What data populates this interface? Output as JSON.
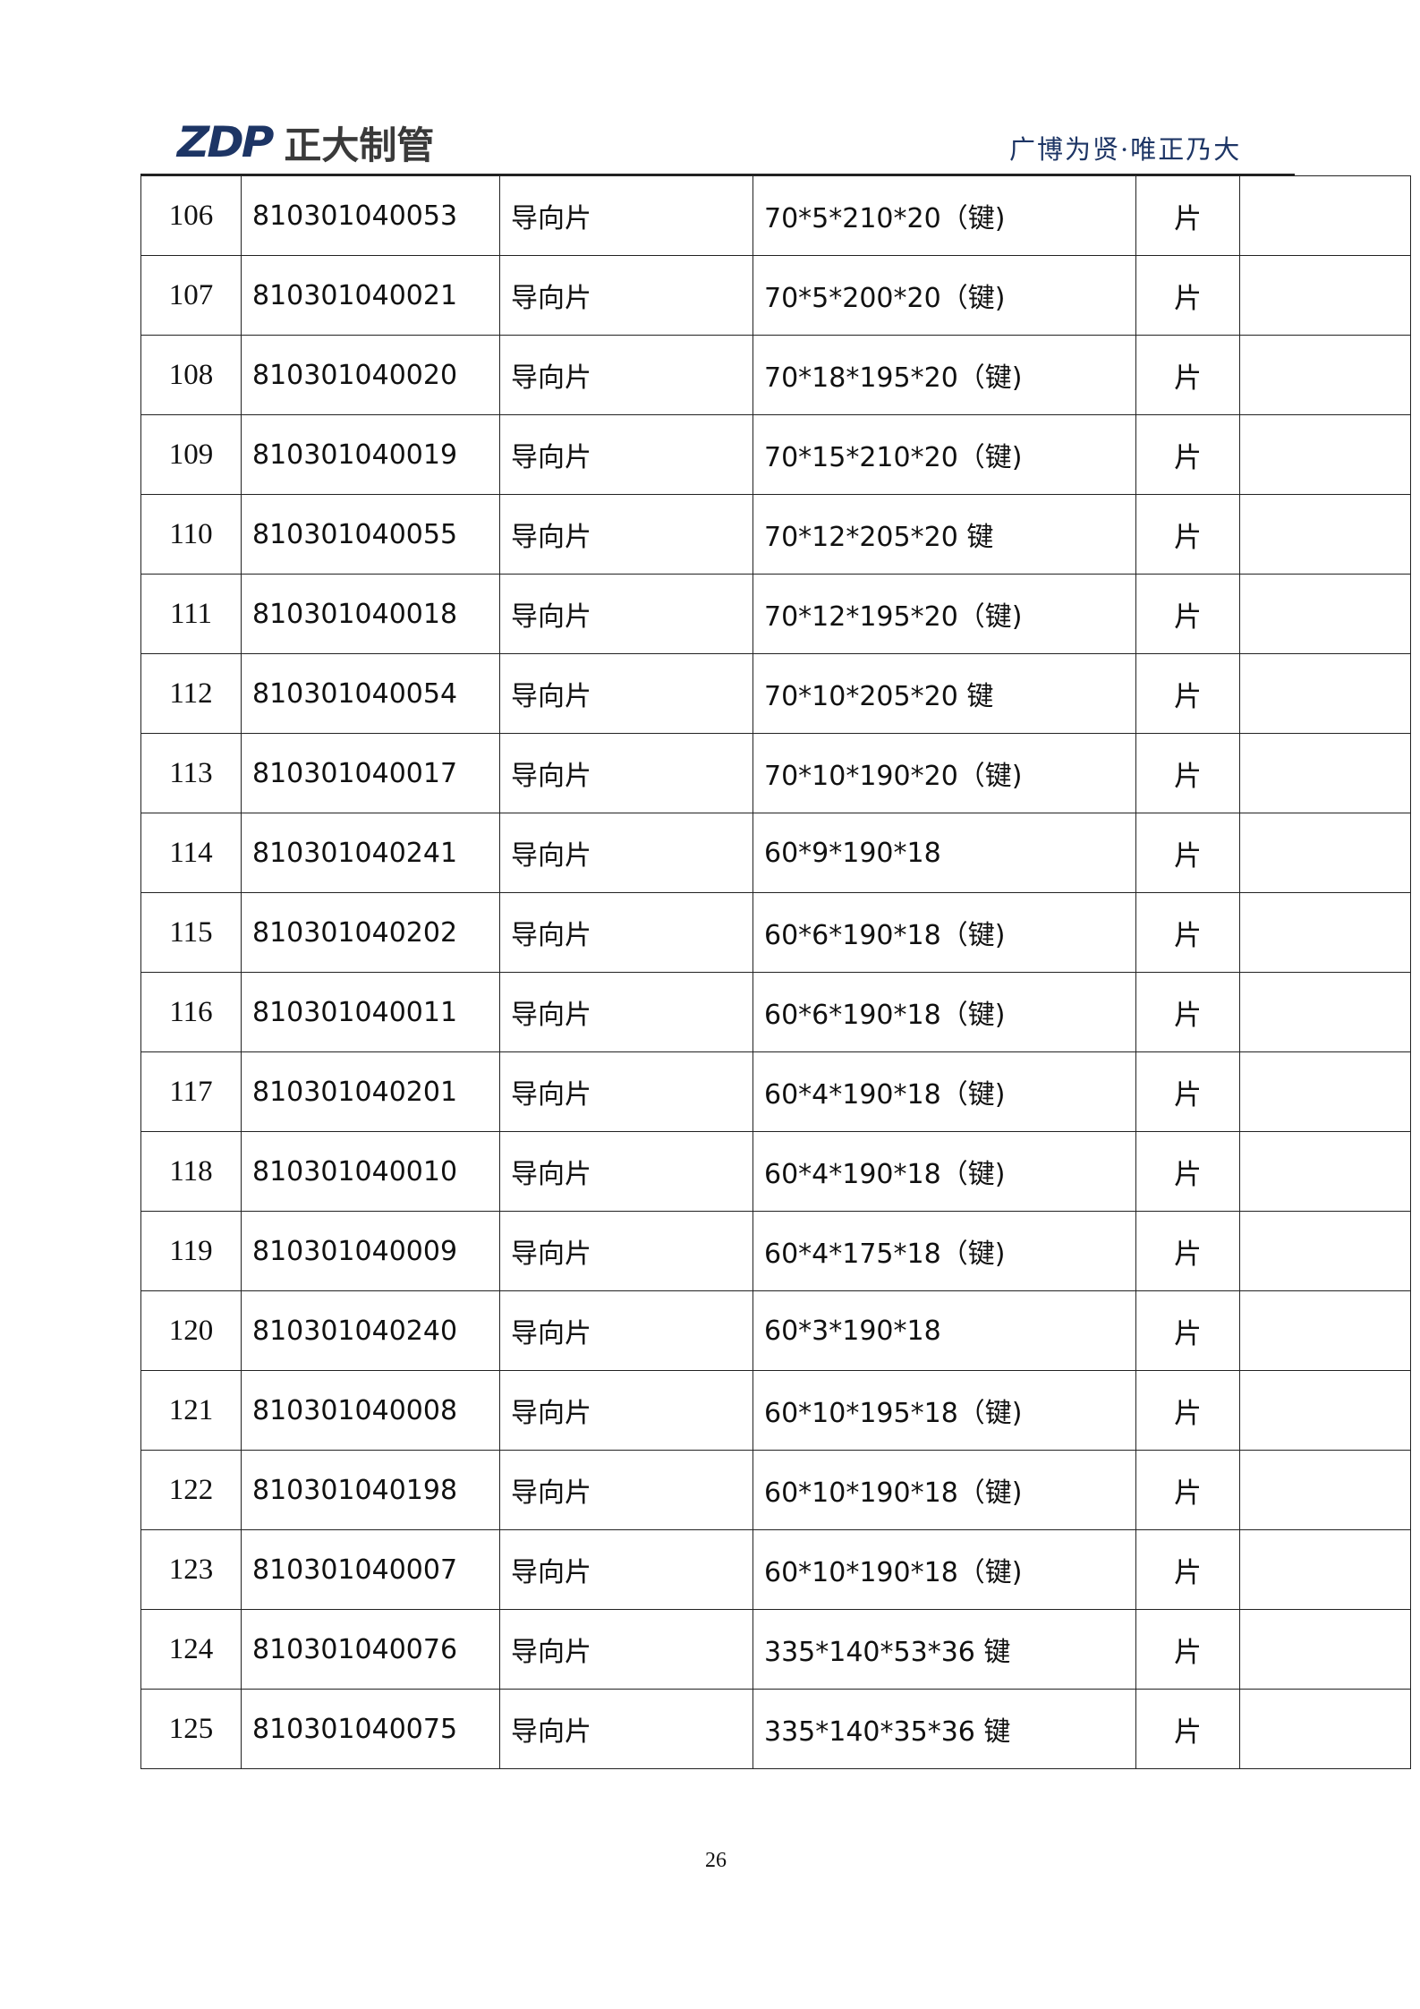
{
  "header": {
    "logo_mark": "ZDP",
    "logo_name": "正大制管",
    "slogan": "广博为贤·唯正乃大"
  },
  "rows": [
    {
      "no": "106",
      "code": "810301040053",
      "name": "导向片",
      "spec": "70*5*210*20（键)",
      "unit": "片",
      "remark": ""
    },
    {
      "no": "107",
      "code": "810301040021",
      "name": "导向片",
      "spec": "70*5*200*20（键)",
      "unit": "片",
      "remark": ""
    },
    {
      "no": "108",
      "code": "810301040020",
      "name": "导向片",
      "spec": "70*18*195*20（键)",
      "unit": "片",
      "remark": ""
    },
    {
      "no": "109",
      "code": "810301040019",
      "name": "导向片",
      "spec": "70*15*210*20（键)",
      "unit": "片",
      "remark": ""
    },
    {
      "no": "110",
      "code": "810301040055",
      "name": "导向片",
      "spec": "70*12*205*20 键",
      "unit": "片",
      "remark": ""
    },
    {
      "no": "111",
      "code": "810301040018",
      "name": "导向片",
      "spec": "70*12*195*20（键)",
      "unit": "片",
      "remark": ""
    },
    {
      "no": "112",
      "code": "810301040054",
      "name": "导向片",
      "spec": "70*10*205*20 键",
      "unit": "片",
      "remark": ""
    },
    {
      "no": "113",
      "code": "810301040017",
      "name": "导向片",
      "spec": "70*10*190*20（键)",
      "unit": "片",
      "remark": ""
    },
    {
      "no": "114",
      "code": "810301040241",
      "name": "导向片",
      "spec": "60*9*190*18",
      "unit": "片",
      "remark": ""
    },
    {
      "no": "115",
      "code": "810301040202",
      "name": "导向片",
      "spec": "60*6*190*18（键)",
      "unit": "片",
      "remark": ""
    },
    {
      "no": "116",
      "code": "810301040011",
      "name": "导向片",
      "spec": "60*6*190*18（键)",
      "unit": "片",
      "remark": ""
    },
    {
      "no": "117",
      "code": "810301040201",
      "name": "导向片",
      "spec": "60*4*190*18（键)",
      "unit": "片",
      "remark": ""
    },
    {
      "no": "118",
      "code": "810301040010",
      "name": "导向片",
      "spec": "60*4*190*18（键)",
      "unit": "片",
      "remark": ""
    },
    {
      "no": "119",
      "code": "810301040009",
      "name": "导向片",
      "spec": "60*4*175*18（键)",
      "unit": "片",
      "remark": ""
    },
    {
      "no": "120",
      "code": "810301040240",
      "name": "导向片",
      "spec": "60*3*190*18",
      "unit": "片",
      "remark": ""
    },
    {
      "no": "121",
      "code": "810301040008",
      "name": "导向片",
      "spec": "60*10*195*18（键)",
      "unit": "片",
      "remark": ""
    },
    {
      "no": "122",
      "code": "810301040198",
      "name": "导向片",
      "spec": "60*10*190*18（键)",
      "unit": "片",
      "remark": ""
    },
    {
      "no": "123",
      "code": "810301040007",
      "name": "导向片",
      "spec": "60*10*190*18（键)",
      "unit": "片",
      "remark": ""
    },
    {
      "no": "124",
      "code": "810301040076",
      "name": "导向片",
      "spec": "335*140*53*36 键",
      "unit": "片",
      "remark": ""
    },
    {
      "no": "125",
      "code": "810301040075",
      "name": "导向片",
      "spec": "335*140*35*36 键",
      "unit": "片",
      "remark": ""
    }
  ],
  "footer": {
    "page_number": "26"
  }
}
